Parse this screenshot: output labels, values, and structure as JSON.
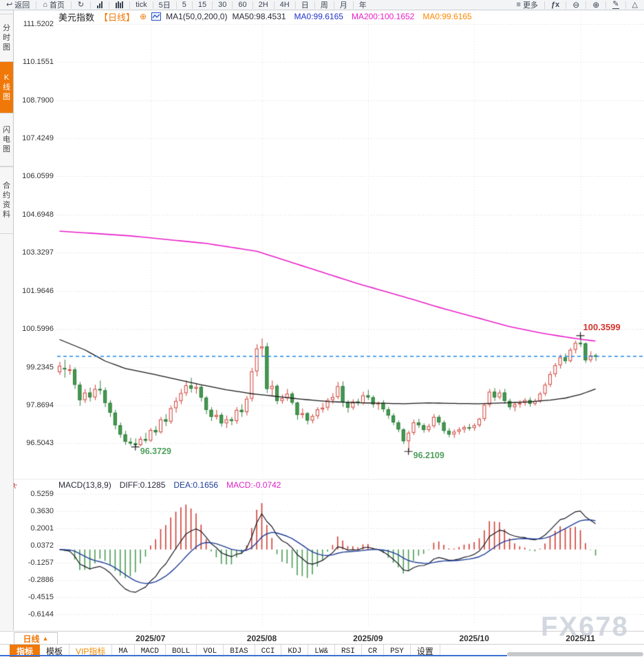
{
  "toolbar": {
    "back_label": "返回",
    "home_label": "首页",
    "periods": [
      "tick",
      "5日",
      "5",
      "15",
      "30",
      "60",
      "2H",
      "4H",
      "日",
      "周",
      "月",
      "年"
    ],
    "more_label": "更多",
    "fx_label": "ƒx",
    "icons": {
      "back": "↩",
      "home": "⌂",
      "refresh": "↻",
      "more": "≡",
      "zoom_out": "⊖",
      "zoom_in": "⊕",
      "draw": "✎",
      "shape": "△"
    }
  },
  "sidebar": {
    "items": [
      {
        "label": "分时图",
        "active": false
      },
      {
        "label": "K线图",
        "active": true
      },
      {
        "label": "闪电图",
        "active": false
      },
      {
        "label": "合约资料",
        "active": false
      }
    ]
  },
  "chart_header": {
    "symbol": "美元指数",
    "period_tag": "【日线】",
    "ma_settings": "MA1(50,0,200,0)",
    "ma_values": [
      {
        "text": "MA50:98.4531",
        "color": "#2a2a3a"
      },
      {
        "text": "MA0:99.6165",
        "color": "#2233cc"
      },
      {
        "text": "MA200:100.1652",
        "color": "#e81ec8"
      },
      {
        "text": "MA0:99.6165",
        "color": "#ff8800"
      }
    ]
  },
  "macd_header": {
    "formula": "MACD(13,8,9)",
    "items": [
      {
        "text": "DIFF:0.1285",
        "color": "#2a2a3a"
      },
      {
        "text": "DEA:0.1656",
        "color": "#1c3a96"
      },
      {
        "text": "MACD:-0.0742",
        "color": "#e020c8"
      }
    ]
  },
  "bottom": {
    "period_button": "日线",
    "period_button_arrow": "▲",
    "tabs": [
      {
        "label": "指标",
        "state": "active"
      },
      {
        "label": "模板",
        "state": "normal"
      },
      {
        "label": "VIP指标",
        "state": "vip"
      },
      {
        "label": "MA",
        "state": "en"
      },
      {
        "label": "MACD",
        "state": "en"
      },
      {
        "label": "BOLL",
        "state": "en"
      },
      {
        "label": "VOL",
        "state": "en"
      },
      {
        "label": "BIAS",
        "state": "en"
      },
      {
        "label": "CCI",
        "state": "en"
      },
      {
        "label": "KDJ",
        "state": "en"
      },
      {
        "label": "LW&",
        "state": "en"
      },
      {
        "label": "RSI",
        "state": "en"
      },
      {
        "label": "CR",
        "state": "en"
      },
      {
        "label": "PSY",
        "state": "en"
      },
      {
        "label": "设置",
        "state": "normal"
      }
    ]
  },
  "watermark": "FX678",
  "colors": {
    "accent_orange": "#f07808",
    "up_red": "#cf3b32",
    "down_green": "#479a52",
    "down_green_border": "#2e7d3a",
    "ma50_black": "#151515",
    "ma200_magenta": "#e81ec8",
    "price_dashed_blue": "#1e88e8",
    "diff_black": "#15151f",
    "dea_blue": "#1c3a96",
    "annotation_green": "#4fa05c",
    "annotation_red": "#d2352b",
    "grid": "#d2d2d2",
    "watermark_gray": "#c3cad4"
  },
  "chart_data": {
    "type": "candlestick",
    "title": "美元指数 日线 (US Dollar Index, daily)",
    "y_axis_labels_main": [
      "111.5202",
      "110.1551",
      "108.7900",
      "107.4249",
      "106.0599",
      "104.6948",
      "103.3297",
      "101.9646",
      "100.5996",
      "99.2345",
      "97.8694",
      "96.5043"
    ],
    "y_axis_labels_macd": [
      "0.5259",
      "0.3630",
      "0.2001",
      "0.0372",
      "-0.1257",
      "-0.2886",
      "-0.4515",
      "-0.6144"
    ],
    "x_axis_labels": [
      "2025/07",
      "2025/08",
      "2025/09",
      "2025/10",
      "2025/11"
    ],
    "x_label_candle_index": [
      19,
      41,
      62,
      83,
      104
    ],
    "current_price": 99.6165,
    "annotations": [
      {
        "text": "96.3729",
        "candle": 16,
        "price": 96.3729,
        "type": "low"
      },
      {
        "text": "96.2109",
        "candle": 70,
        "price": 96.2109,
        "type": "low"
      },
      {
        "text": "100.3599",
        "candle": 104,
        "price": 100.3599,
        "type": "high"
      }
    ],
    "macd_params": {
      "short": 8,
      "long": 13,
      "mid": 9
    },
    "ma50_anchors": [
      [
        1,
        100.22
      ],
      [
        6,
        99.85
      ],
      [
        10,
        99.45
      ],
      [
        14,
        99.18
      ],
      [
        19,
        99.0
      ],
      [
        24,
        98.8
      ],
      [
        29,
        98.6
      ],
      [
        34,
        98.42
      ],
      [
        39,
        98.28
      ],
      [
        44,
        98.18
      ],
      [
        49,
        98.08
      ],
      [
        54,
        98.0
      ],
      [
        59,
        97.96
      ],
      [
        64,
        97.94
      ],
      [
        69,
        97.92
      ],
      [
        74,
        97.95
      ],
      [
        79,
        97.93
      ],
      [
        84,
        97.92
      ],
      [
        89,
        97.95
      ],
      [
        94,
        97.99
      ],
      [
        98,
        98.05
      ],
      [
        101,
        98.12
      ],
      [
        104,
        98.25
      ],
      [
        107,
        98.45
      ]
    ],
    "ma200_anchors": [
      [
        1,
        104.1
      ],
      [
        15,
        103.93
      ],
      [
        30,
        103.66
      ],
      [
        40,
        103.38
      ],
      [
        50,
        102.8
      ],
      [
        60,
        102.22
      ],
      [
        70,
        101.7
      ],
      [
        77,
        101.32
      ],
      [
        84,
        100.98
      ],
      [
        90,
        100.68
      ],
      [
        96,
        100.46
      ],
      [
        100,
        100.34
      ],
      [
        104,
        100.23
      ],
      [
        107,
        100.165
      ]
    ],
    "candles": [
      [
        99.05,
        99.42,
        98.95,
        99.28
      ],
      [
        99.2,
        99.5,
        98.85,
        99.18
      ],
      [
        99.15,
        99.32,
        98.96,
        99.15
      ],
      [
        99.15,
        99.22,
        98.45,
        98.6
      ],
      [
        98.6,
        98.7,
        97.85,
        98.05
      ],
      [
        98.05,
        98.45,
        97.95,
        98.32
      ],
      [
        98.32,
        98.5,
        98.0,
        98.15
      ],
      [
        98.15,
        98.6,
        98.05,
        98.45
      ],
      [
        98.45,
        98.75,
        98.25,
        98.4
      ],
      [
        98.4,
        98.5,
        97.8,
        97.95
      ],
      [
        97.95,
        98.05,
        97.45,
        97.6
      ],
      [
        97.6,
        97.7,
        97.0,
        97.15
      ],
      [
        97.15,
        97.25,
        96.7,
        96.82
      ],
      [
        96.82,
        96.95,
        96.45,
        96.56
      ],
      [
        96.56,
        96.7,
        96.42,
        96.5
      ],
      [
        96.5,
        96.68,
        96.3729,
        96.44
      ],
      [
        96.44,
        96.75,
        96.4,
        96.66
      ],
      [
        96.66,
        96.88,
        96.52,
        96.6
      ],
      [
        96.6,
        97.05,
        96.55,
        96.98
      ],
      [
        96.98,
        97.12,
        96.78,
        96.9
      ],
      [
        96.9,
        97.45,
        96.85,
        97.36
      ],
      [
        97.36,
        97.55,
        97.12,
        97.28
      ],
      [
        97.28,
        97.85,
        97.2,
        97.76
      ],
      [
        97.76,
        98.15,
        97.6,
        98.02
      ],
      [
        98.02,
        98.45,
        97.9,
        98.3
      ],
      [
        98.3,
        98.75,
        98.2,
        98.58
      ],
      [
        98.58,
        98.85,
        98.32,
        98.46
      ],
      [
        98.46,
        98.65,
        98.28,
        98.52
      ],
      [
        98.52,
        98.6,
        98.0,
        98.14
      ],
      [
        98.14,
        98.2,
        97.55,
        97.7
      ],
      [
        97.7,
        97.8,
        97.3,
        97.45
      ],
      [
        97.45,
        97.7,
        97.35,
        97.52
      ],
      [
        97.52,
        97.6,
        97.1,
        97.22
      ],
      [
        97.22,
        97.5,
        97.05,
        97.36
      ],
      [
        97.36,
        97.45,
        97.15,
        97.3
      ],
      [
        97.3,
        97.8,
        97.2,
        97.7
      ],
      [
        97.7,
        97.9,
        97.45,
        97.62
      ],
      [
        97.62,
        98.2,
        97.5,
        98.1
      ],
      [
        98.1,
        99.2,
        98.0,
        99.08
      ],
      [
        99.08,
        100.05,
        98.9,
        99.9
      ],
      [
        99.9,
        100.26,
        99.6,
        99.97
      ],
      [
        99.97,
        100.1,
        98.3,
        98.45
      ],
      [
        98.45,
        98.75,
        98.2,
        98.56
      ],
      [
        98.56,
        98.62,
        97.9,
        98.02
      ],
      [
        98.02,
        98.25,
        97.92,
        98.12
      ],
      [
        98.12,
        98.45,
        98.02,
        98.28
      ],
      [
        98.28,
        98.35,
        97.88,
        97.96
      ],
      [
        97.96,
        98.0,
        97.35,
        97.52
      ],
      [
        97.52,
        97.75,
        97.4,
        97.58
      ],
      [
        97.58,
        97.62,
        97.18,
        97.32
      ],
      [
        97.32,
        97.55,
        97.22,
        97.48
      ],
      [
        97.48,
        97.8,
        97.38,
        97.72
      ],
      [
        97.72,
        97.95,
        97.6,
        97.78
      ],
      [
        97.78,
        98.12,
        97.68,
        98.05
      ],
      [
        98.05,
        98.3,
        97.92,
        98.16
      ],
      [
        98.16,
        98.7,
        98.08,
        98.55
      ],
      [
        98.55,
        98.72,
        97.8,
        97.98
      ],
      [
        97.98,
        98.05,
        97.6,
        97.78
      ],
      [
        97.78,
        98.08,
        97.7,
        98.0
      ],
      [
        98.0,
        98.1,
        97.85,
        97.94
      ],
      [
        97.94,
        98.35,
        97.88,
        98.22
      ],
      [
        98.22,
        98.42,
        98.05,
        98.15
      ],
      [
        98.15,
        98.22,
        97.78,
        97.9
      ],
      [
        97.9,
        98.0,
        97.7,
        97.95
      ],
      [
        97.95,
        98.05,
        97.62,
        97.72
      ],
      [
        97.72,
        97.8,
        97.38,
        97.5
      ],
      [
        97.5,
        97.58,
        97.15,
        97.25
      ],
      [
        97.25,
        97.32,
        96.9,
        97.0
      ],
      [
        97.0,
        97.05,
        96.48,
        96.58
      ],
      [
        96.58,
        96.95,
        96.2109,
        96.88
      ],
      [
        96.88,
        97.35,
        96.8,
        97.25
      ],
      [
        97.25,
        97.38,
        97.05,
        97.15
      ],
      [
        97.15,
        97.22,
        96.88,
        96.98
      ],
      [
        96.98,
        97.2,
        96.9,
        97.12
      ],
      [
        97.12,
        97.55,
        97.05,
        97.45
      ],
      [
        97.45,
        97.52,
        97.15,
        97.25
      ],
      [
        97.25,
        97.32,
        96.85,
        96.95
      ],
      [
        96.95,
        97.05,
        96.72,
        96.82
      ],
      [
        96.82,
        97.0,
        96.7,
        96.92
      ],
      [
        96.92,
        97.08,
        96.82,
        97.0
      ],
      [
        97.0,
        97.15,
        96.88,
        97.08
      ],
      [
        97.08,
        97.2,
        96.95,
        97.05
      ],
      [
        97.05,
        97.22,
        96.95,
        97.15
      ],
      [
        97.15,
        97.42,
        97.08,
        97.38
      ],
      [
        97.38,
        97.95,
        97.3,
        97.88
      ],
      [
        97.88,
        98.45,
        97.8,
        98.35
      ],
      [
        98.35,
        98.48,
        98.02,
        98.15
      ],
      [
        98.15,
        98.42,
        98.08,
        98.32
      ],
      [
        98.32,
        98.45,
        97.92,
        98.02
      ],
      [
        98.02,
        98.1,
        97.7,
        97.8
      ],
      [
        97.8,
        97.98,
        97.65,
        97.9
      ],
      [
        97.9,
        98.05,
        97.78,
        97.95
      ],
      [
        97.95,
        98.12,
        97.85,
        98.05
      ],
      [
        98.05,
        98.15,
        97.82,
        97.92
      ],
      [
        97.92,
        98.1,
        97.85,
        98.02
      ],
      [
        98.02,
        98.35,
        97.95,
        98.28
      ],
      [
        98.28,
        98.68,
        98.2,
        98.6
      ],
      [
        98.6,
        99.08,
        98.52,
        98.98
      ],
      [
        98.98,
        99.38,
        98.88,
        99.3
      ],
      [
        99.3,
        99.68,
        99.18,
        99.58
      ],
      [
        99.58,
        99.72,
        99.35,
        99.45
      ],
      [
        99.45,
        99.92,
        99.4,
        99.85
      ],
      [
        99.85,
        100.18,
        99.72,
        100.1
      ],
      [
        100.1,
        100.3599,
        99.95,
        100.08
      ],
      [
        100.08,
        100.12,
        99.38,
        99.48
      ],
      [
        99.48,
        99.8,
        99.4,
        99.65
      ],
      [
        99.65,
        99.72,
        99.45,
        99.6165
      ]
    ]
  }
}
